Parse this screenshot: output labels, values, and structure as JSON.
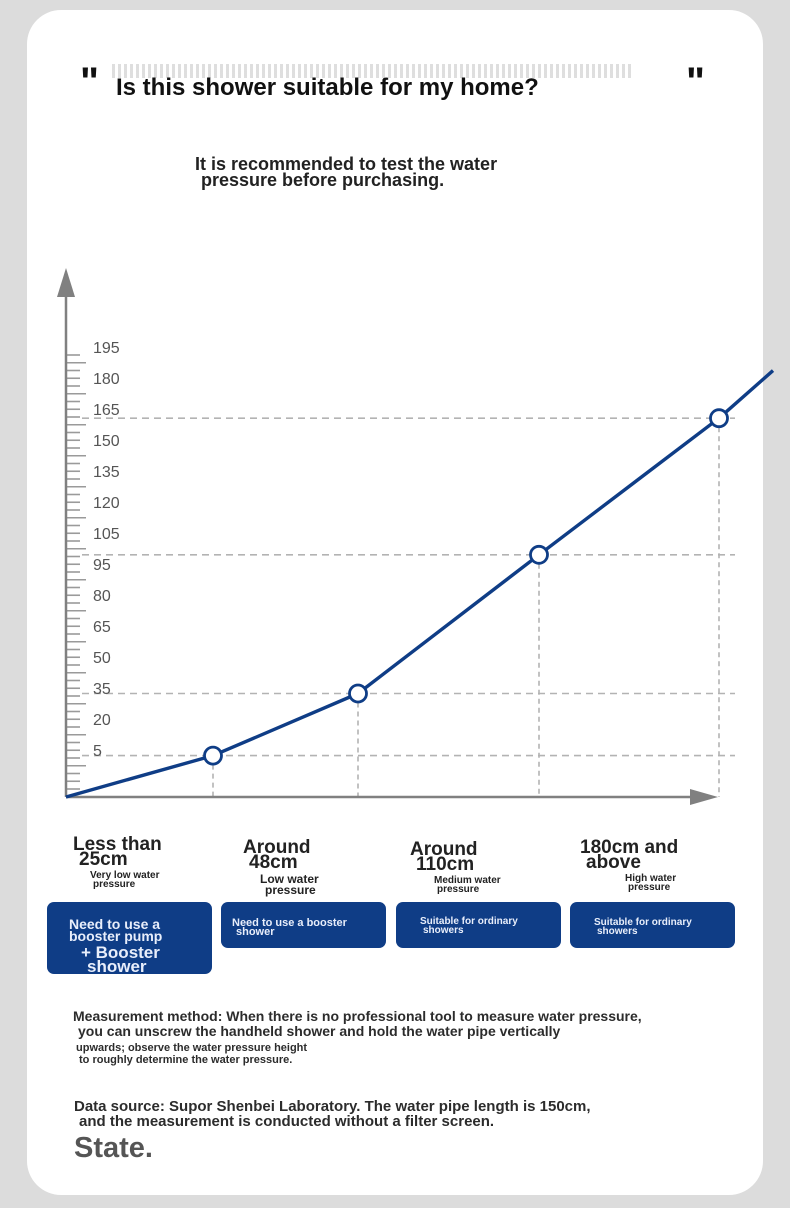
{
  "header": {
    "open_quote": "\"",
    "close_quote": "\"",
    "title": "Is this shower suitable for my home?",
    "subtitle_line1": "It is recommended to test the water",
    "subtitle_line2": "pressure before purchasing."
  },
  "chart_data": {
    "type": "line",
    "y_ticks": [
      195,
      180,
      165,
      150,
      135,
      120,
      105,
      95,
      80,
      65,
      50,
      35,
      20,
      5
    ],
    "series": [
      {
        "points": [
          {
            "x": 0,
            "y": 0
          },
          {
            "x": 1,
            "y": 20
          },
          {
            "x": 2,
            "y": 50
          },
          {
            "x": 3,
            "y": 117
          },
          {
            "x": 4,
            "y": 183
          },
          {
            "x": 4.3,
            "y": 206
          }
        ],
        "markers": [
          1,
          2,
          3,
          4
        ]
      }
    ],
    "ylim": [
      0,
      208
    ],
    "grid": "dashed reference lines at markers",
    "line_color": "#0f3d86",
    "grid_color": "#b3b3b3",
    "axis_color": "#808080",
    "categories": [
      {
        "label_line1": "Less than",
        "label_line2": "25cm",
        "desc_line1": "Very low water",
        "desc_line2": "pressure"
      },
      {
        "label_line1": "Around",
        "label_line2": "48cm",
        "desc_line1": "Low water",
        "desc_line2": "pressure"
      },
      {
        "label_line1": "Around",
        "label_line2": "110cm",
        "desc_line1": "Medium water",
        "desc_line2": "pressure"
      },
      {
        "label_line1": "180cm and",
        "label_line2": "above",
        "desc_line1": "High water",
        "desc_line2": "pressure"
      }
    ]
  },
  "tags": [
    {
      "line1": "Need to use a",
      "line2": "booster pump",
      "line3": "+ Booster",
      "line4": "shower"
    },
    {
      "line1": "Need to use a booster",
      "line2": "shower"
    },
    {
      "line1": "Suitable for ordinary",
      "line2": "showers"
    },
    {
      "line1": "Suitable for ordinary",
      "line2": "showers"
    }
  ],
  "notes": {
    "method_line1": "Measurement method: When there is no professional tool to measure water pressure,",
    "method_line2": "you can unscrew the handheld shower and hold the water pipe vertically",
    "method_line3": "upwards; observe the water pressure height",
    "method_line4": "to roughly determine the water pressure.",
    "source_line1": "Data source: Supor Shenbei Laboratory. The water pipe length is 150cm,",
    "source_line2": "and the measurement is conducted without a filter screen.",
    "state": "State."
  },
  "colors": {
    "background": "#dcdcdc",
    "card": "#ffffff",
    "accent": "#0f3d86"
  }
}
